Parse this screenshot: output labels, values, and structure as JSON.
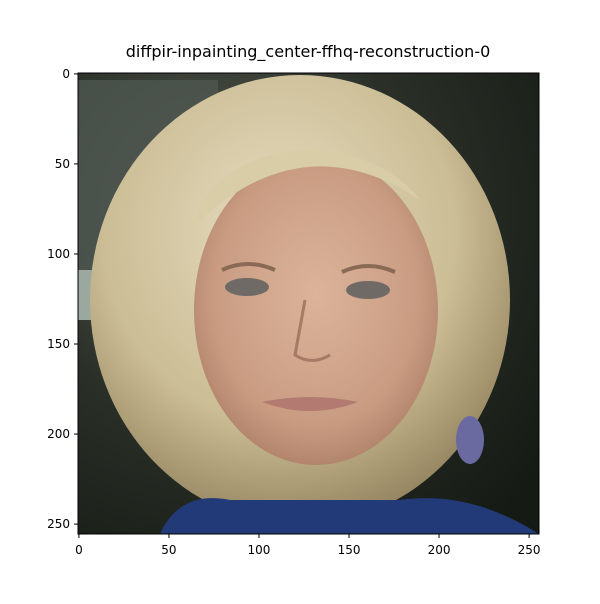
{
  "chart_data": {
    "type": "image",
    "title": "diffpir-inpainting_center-ffhq-reconstruction-0",
    "xlim": [
      -0.5,
      255.5
    ],
    "ylim": [
      255.5,
      -0.5
    ],
    "xticks": [
      0,
      50,
      100,
      150,
      200,
      250
    ],
    "yticks": [
      0,
      50,
      100,
      150,
      200,
      250
    ]
  }
}
